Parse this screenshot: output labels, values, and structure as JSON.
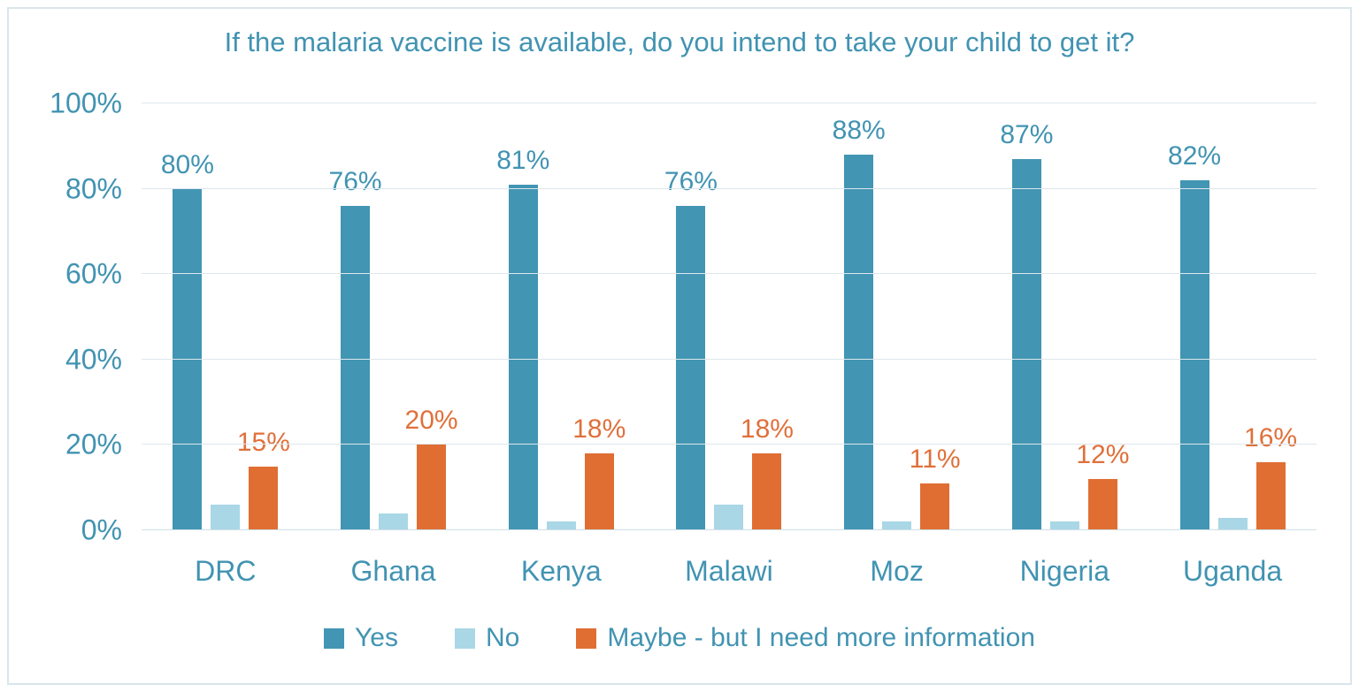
{
  "chart_data": {
    "type": "bar",
    "title": "If the malaria vaccine is available, do you intend to take your child to get it?",
    "categories": [
      "DRC",
      "Ghana",
      "Kenya",
      "Malawi",
      "Moz",
      "Nigeria",
      "Uganda"
    ],
    "series": [
      {
        "name": "Yes",
        "color": "#4295b3",
        "label_color": "#4193b2",
        "show_labels": true,
        "values": [
          80,
          76,
          81,
          76,
          88,
          87,
          82
        ],
        "labels": [
          "80%",
          "76%",
          "81%",
          "76%",
          "88%",
          "87%",
          "82%"
        ]
      },
      {
        "name": "No",
        "color": "#a9d7e6",
        "label_color": "#a9d7e6",
        "show_labels": false,
        "values": [
          6,
          4,
          2,
          6,
          2,
          2,
          3
        ],
        "labels": [
          "6%",
          "4%",
          "2%",
          "6%",
          "2%",
          "2%",
          "3%"
        ]
      },
      {
        "name": "Maybe - but I need more information",
        "color": "#e06e33",
        "label_color": "#e0703a",
        "show_labels": true,
        "values": [
          15,
          20,
          18,
          18,
          11,
          12,
          16
        ],
        "labels": [
          "15%",
          "20%",
          "18%",
          "18%",
          "11%",
          "12%",
          "16%"
        ]
      }
    ],
    "ylim": [
      0,
      100
    ],
    "yticks": [
      {
        "value": 0,
        "label": "0%"
      },
      {
        "value": 20,
        "label": "20%"
      },
      {
        "value": 40,
        "label": "40%"
      },
      {
        "value": 60,
        "label": "60%"
      },
      {
        "value": 80,
        "label": "80%"
      },
      {
        "value": 100,
        "label": "100%"
      }
    ],
    "grid": true,
    "legend_position": "bottom",
    "colors": {
      "title_text": "#4193b2",
      "axis_text": "#4193b2",
      "gridline": "#dde7ec",
      "frame_border": "#d9e6ec",
      "background": "#ffffff"
    }
  }
}
